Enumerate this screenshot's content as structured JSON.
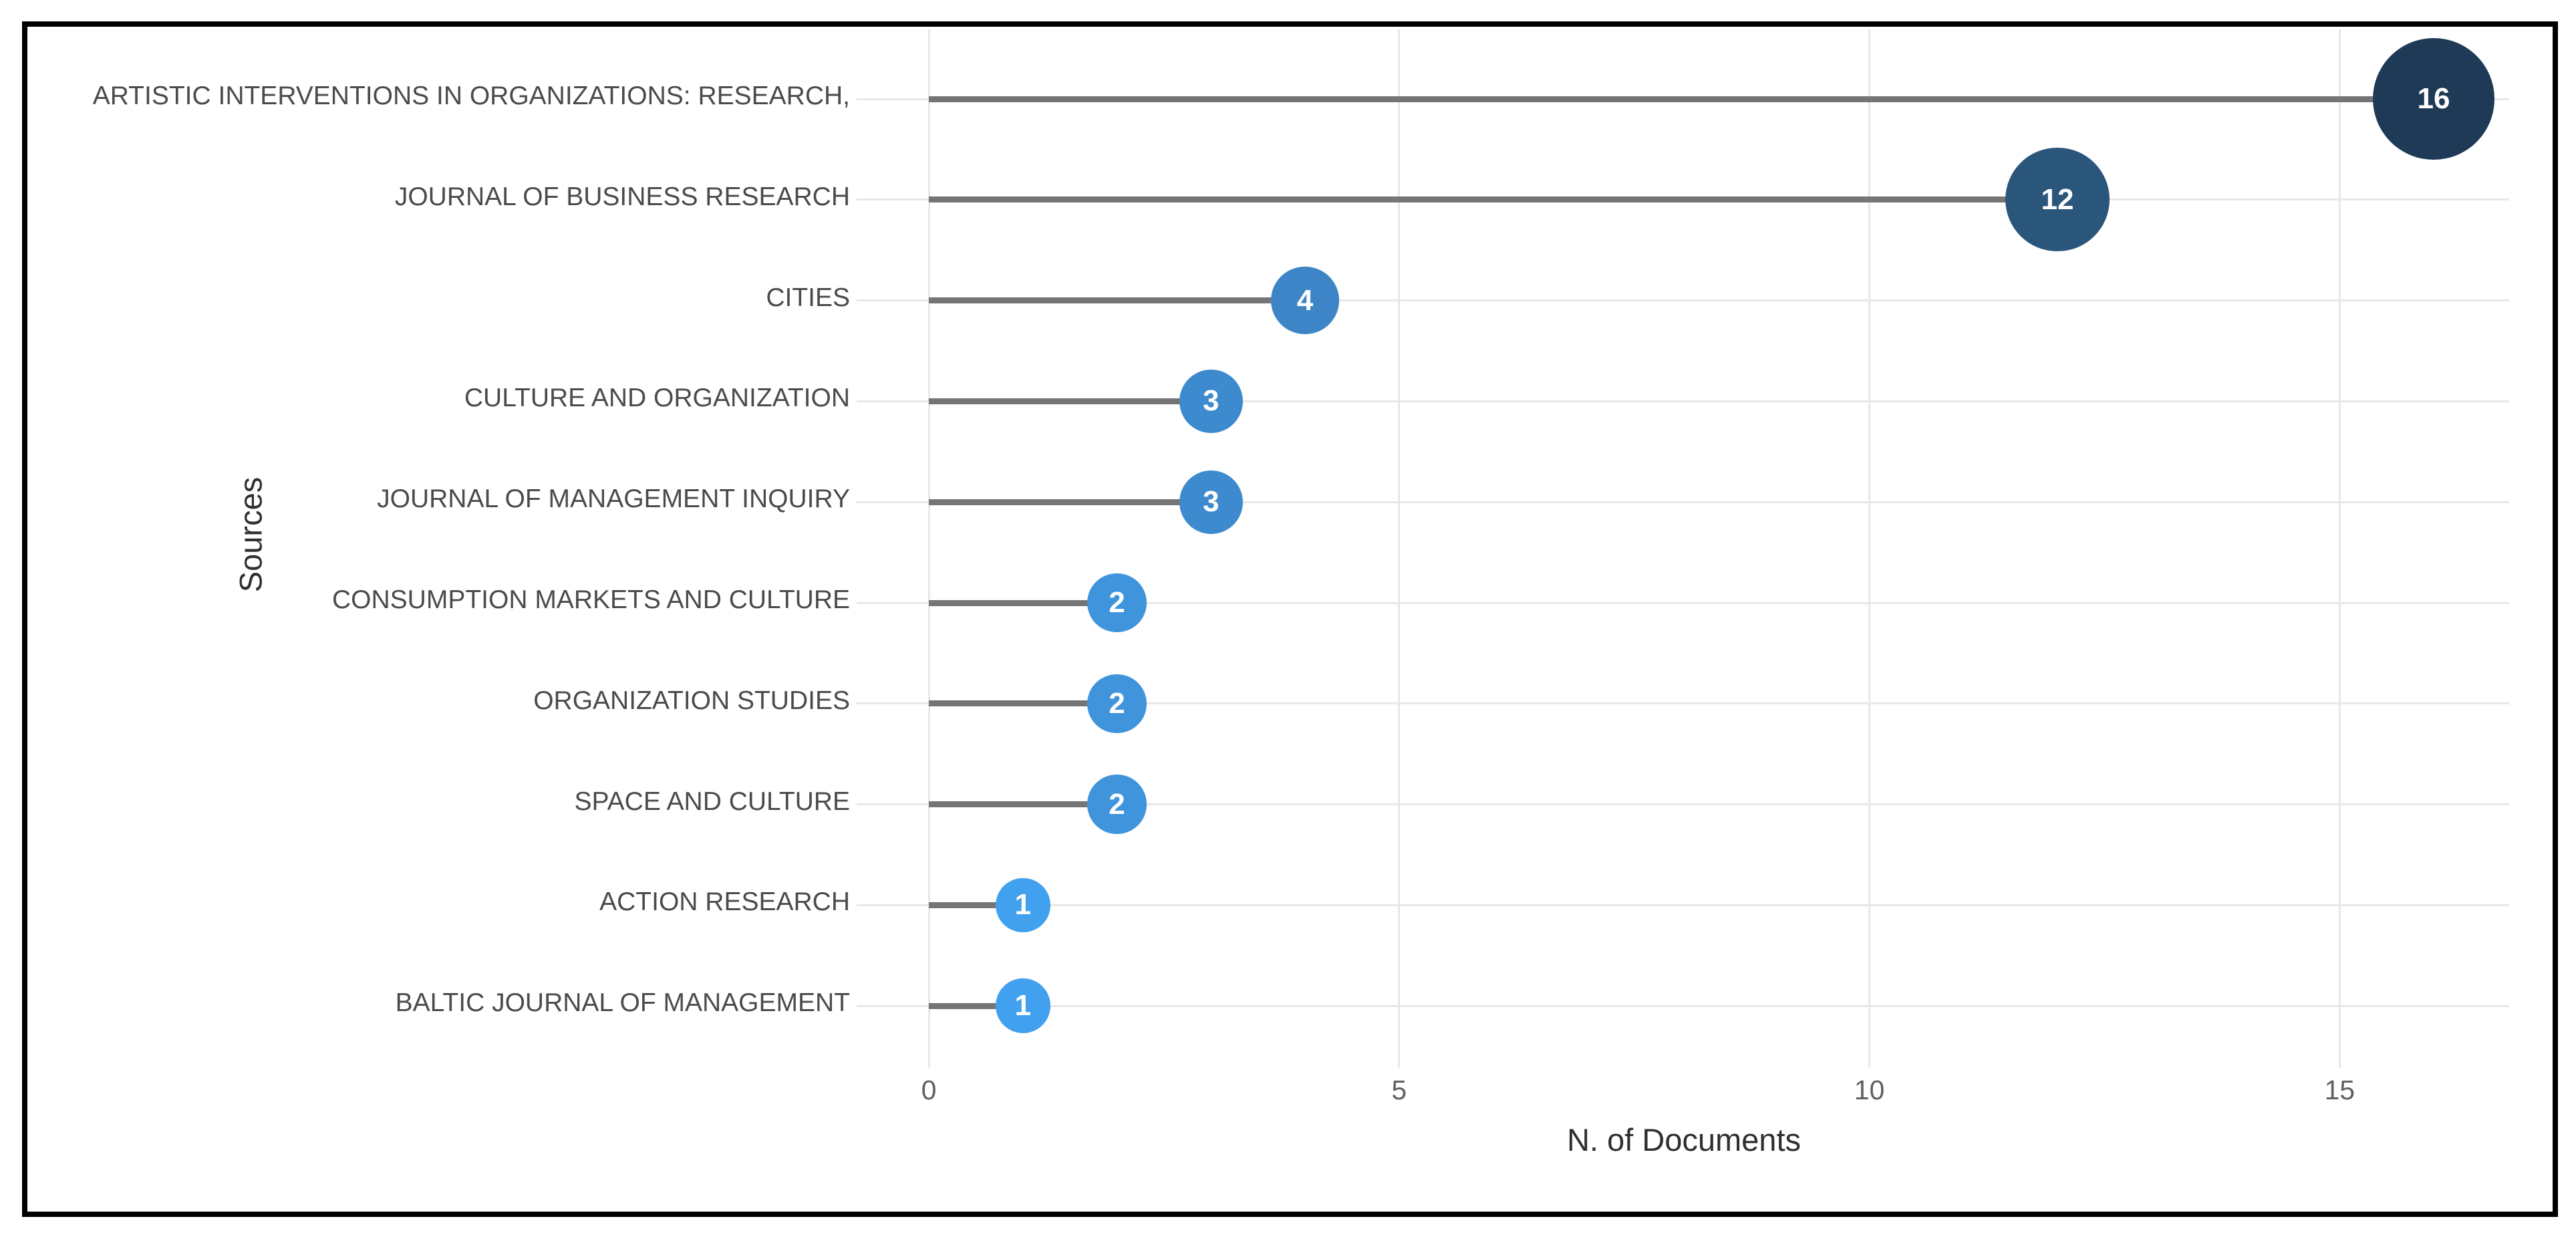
{
  "chart_data": {
    "type": "bar",
    "variant": "lollipop",
    "orientation": "horizontal",
    "categories": [
      "ARTISTIC INTERVENTIONS IN ORGANIZATIONS: RESEARCH,",
      "JOURNAL OF BUSINESS RESEARCH",
      "CITIES",
      "CULTURE AND ORGANIZATION",
      "JOURNAL OF MANAGEMENT INQUIRY",
      "CONSUMPTION MARKETS AND CULTURE",
      "ORGANIZATION STUDIES",
      "SPACE AND CULTURE",
      "ACTION RESEARCH",
      "BALTIC JOURNAL OF MANAGEMENT"
    ],
    "values": [
      16,
      12,
      4,
      3,
      3,
      2,
      2,
      2,
      1,
      1
    ],
    "point_labels": [
      "16",
      "12",
      "4",
      "3",
      "3",
      "2",
      "2",
      "2",
      "1",
      "1"
    ],
    "point_colors": [
      "#1e3a56",
      "#2b567b",
      "#3d85c6",
      "#3e8ace",
      "#3e8ace",
      "#4094dc",
      "#4094dc",
      "#4094dc",
      "#42a1ef",
      "#42a1ef"
    ],
    "xlabel": "N. of Documents",
    "ylabel": "Sources",
    "xticks": [
      "0",
      "5",
      "10",
      "15"
    ],
    "xtick_values": [
      0,
      5,
      10,
      15
    ],
    "xlim": [
      0,
      16.8
    ],
    "grid": true,
    "legend": "none",
    "colors": {
      "stem": "#757575",
      "gridline": "#e8e8e8",
      "category_label": "#4b4b4b",
      "tick_label": "#606060",
      "axis_title": "#2f2f2f",
      "bubble_text": "#ffffff",
      "frame_border": "#000000",
      "background": "#ffffff"
    }
  }
}
